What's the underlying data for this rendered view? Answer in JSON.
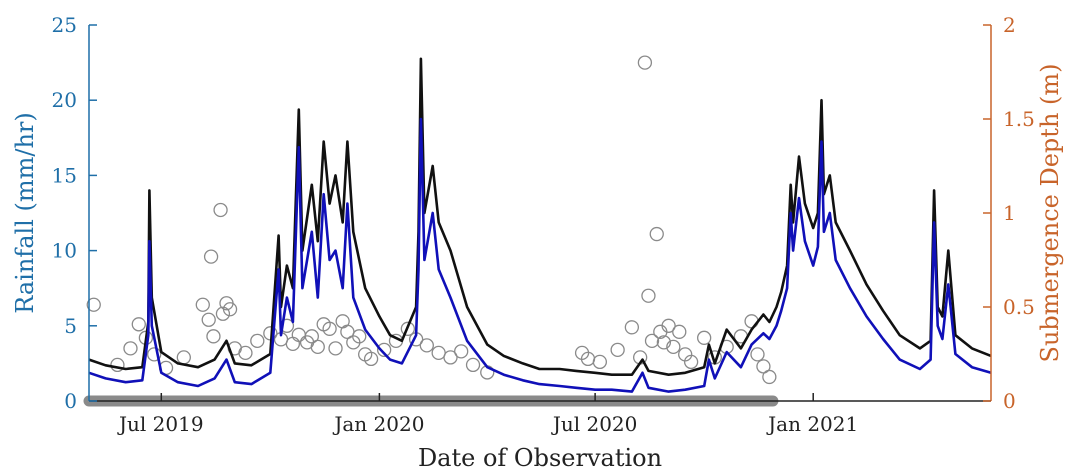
{
  "chart_data": {
    "type": "line",
    "title": "",
    "xlabel": "Date of Observation",
    "ylabel_left": "Rainfall (mm/hr)",
    "ylabel_right": "Submergence Depth (m)",
    "xlim": [
      "2019-05-01",
      "2021-05-31"
    ],
    "ylim_left": [
      0,
      25
    ],
    "ylim_right": [
      0,
      2
    ],
    "x_ticks": [
      {
        "date": "2019-07-01",
        "label": "Jul 2019"
      },
      {
        "date": "2020-01-01",
        "label": "Jan 2020"
      },
      {
        "date": "2020-07-01",
        "label": "Jul 2020"
      },
      {
        "date": "2021-01-01",
        "label": "Jan 2021"
      }
    ],
    "y_ticks_left": [
      0,
      5,
      10,
      15,
      20,
      25
    ],
    "y_ticks_right": [
      0,
      0.5,
      1,
      1.5,
      2
    ],
    "grid": false,
    "legend": null,
    "colors": {
      "left_axis": "#1f6fa8",
      "right_axis": "#c8642a",
      "series_black": "#111111",
      "series_blue": "#1010b8",
      "rain_markers": "#8a8a8a"
    },
    "series": [
      {
        "axis": "right",
        "color": "#111111",
        "points": [
          [
            "2019-05-01",
            0.22
          ],
          [
            "2019-05-15",
            0.19
          ],
          [
            "2019-06-01",
            0.17
          ],
          [
            "2019-06-15",
            0.18
          ],
          [
            "2019-06-20",
            0.42
          ],
          [
            "2019-06-21",
            1.12
          ],
          [
            "2019-06-23",
            0.55
          ],
          [
            "2019-07-01",
            0.26
          ],
          [
            "2019-07-15",
            0.2
          ],
          [
            "2019-08-01",
            0.18
          ],
          [
            "2019-08-15",
            0.22
          ],
          [
            "2019-08-25",
            0.32
          ],
          [
            "2019-09-01",
            0.2
          ],
          [
            "2019-09-15",
            0.19
          ],
          [
            "2019-10-01",
            0.25
          ],
          [
            "2019-10-08",
            0.88
          ],
          [
            "2019-10-10",
            0.5
          ],
          [
            "2019-10-15",
            0.72
          ],
          [
            "2019-10-20",
            0.6
          ],
          [
            "2019-10-25",
            1.55
          ],
          [
            "2019-10-28",
            0.8
          ],
          [
            "2019-11-05",
            1.15
          ],
          [
            "2019-11-10",
            0.85
          ],
          [
            "2019-11-15",
            1.38
          ],
          [
            "2019-11-20",
            1.05
          ],
          [
            "2019-11-25",
            1.2
          ],
          [
            "2019-12-01",
            0.95
          ],
          [
            "2019-12-05",
            1.38
          ],
          [
            "2019-12-10",
            0.9
          ],
          [
            "2019-12-20",
            0.6
          ],
          [
            "2020-01-01",
            0.45
          ],
          [
            "2020-01-10",
            0.35
          ],
          [
            "2020-01-20",
            0.32
          ],
          [
            "2020-02-01",
            0.5
          ],
          [
            "2020-02-03",
            0.9
          ],
          [
            "2020-02-05",
            1.82
          ],
          [
            "2020-02-08",
            1.0
          ],
          [
            "2020-02-15",
            1.25
          ],
          [
            "2020-02-20",
            0.95
          ],
          [
            "2020-03-01",
            0.8
          ],
          [
            "2020-03-15",
            0.5
          ],
          [
            "2020-04-01",
            0.3
          ],
          [
            "2020-04-15",
            0.24
          ],
          [
            "2020-05-01",
            0.2
          ],
          [
            "2020-05-15",
            0.17
          ],
          [
            "2020-06-01",
            0.17
          ],
          [
            "2020-06-15",
            0.16
          ],
          [
            "2020-07-01",
            0.15
          ],
          [
            "2020-07-15",
            0.14
          ],
          [
            "2020-08-01",
            0.14
          ],
          [
            "2020-08-10",
            0.22
          ],
          [
            "2020-08-15",
            0.16
          ],
          [
            "2020-09-01",
            0.14
          ],
          [
            "2020-09-15",
            0.15
          ],
          [
            "2020-10-01",
            0.18
          ],
          [
            "2020-10-05",
            0.3
          ],
          [
            "2020-10-10",
            0.2
          ],
          [
            "2020-10-20",
            0.38
          ],
          [
            "2020-11-01",
            0.28
          ],
          [
            "2020-11-10",
            0.38
          ],
          [
            "2020-11-20",
            0.46
          ],
          [
            "2020-11-25",
            0.42
          ],
          [
            "2020-12-01",
            0.5
          ],
          [
            "2020-12-05",
            0.58
          ],
          [
            "2020-12-10",
            0.72
          ],
          [
            "2020-12-13",
            1.15
          ],
          [
            "2020-12-15",
            0.95
          ],
          [
            "2020-12-20",
            1.3
          ],
          [
            "2020-12-25",
            1.05
          ],
          [
            "2021-01-01",
            0.92
          ],
          [
            "2021-01-05",
            1.0
          ],
          [
            "2021-01-08",
            1.6
          ],
          [
            "2021-01-10",
            1.1
          ],
          [
            "2021-01-15",
            1.2
          ],
          [
            "2021-01-20",
            0.95
          ],
          [
            "2021-02-01",
            0.8
          ],
          [
            "2021-02-15",
            0.62
          ],
          [
            "2021-03-01",
            0.48
          ],
          [
            "2021-03-15",
            0.35
          ],
          [
            "2021-04-01",
            0.28
          ],
          [
            "2021-04-10",
            0.32
          ],
          [
            "2021-04-13",
            1.12
          ],
          [
            "2021-04-16",
            0.5
          ],
          [
            "2021-04-20",
            0.45
          ],
          [
            "2021-04-25",
            0.8
          ],
          [
            "2021-05-01",
            0.35
          ],
          [
            "2021-05-15",
            0.28
          ],
          [
            "2021-05-31",
            0.24
          ]
        ]
      },
      {
        "axis": "right",
        "color": "#1010b8",
        "points": [
          [
            "2019-05-01",
            0.15
          ],
          [
            "2019-05-15",
            0.12
          ],
          [
            "2019-06-01",
            0.1
          ],
          [
            "2019-06-15",
            0.11
          ],
          [
            "2019-06-20",
            0.35
          ],
          [
            "2019-06-21",
            0.85
          ],
          [
            "2019-06-23",
            0.4
          ],
          [
            "2019-07-01",
            0.15
          ],
          [
            "2019-07-15",
            0.1
          ],
          [
            "2019-08-01",
            0.08
          ],
          [
            "2019-08-15",
            0.12
          ],
          [
            "2019-08-25",
            0.22
          ],
          [
            "2019-09-01",
            0.1
          ],
          [
            "2019-09-15",
            0.09
          ],
          [
            "2019-10-01",
            0.15
          ],
          [
            "2019-10-08",
            0.7
          ],
          [
            "2019-10-10",
            0.35
          ],
          [
            "2019-10-15",
            0.55
          ],
          [
            "2019-10-20",
            0.42
          ],
          [
            "2019-10-25",
            1.35
          ],
          [
            "2019-10-28",
            0.6
          ],
          [
            "2019-11-05",
            0.9
          ],
          [
            "2019-11-10",
            0.55
          ],
          [
            "2019-11-15",
            1.1
          ],
          [
            "2019-11-20",
            0.75
          ],
          [
            "2019-11-25",
            0.8
          ],
          [
            "2019-12-01",
            0.6
          ],
          [
            "2019-12-05",
            1.05
          ],
          [
            "2019-12-10",
            0.55
          ],
          [
            "2019-12-20",
            0.38
          ],
          [
            "2020-01-01",
            0.28
          ],
          [
            "2020-01-10",
            0.22
          ],
          [
            "2020-01-20",
            0.2
          ],
          [
            "2020-02-01",
            0.35
          ],
          [
            "2020-02-03",
            0.7
          ],
          [
            "2020-02-05",
            1.5
          ],
          [
            "2020-02-08",
            0.75
          ],
          [
            "2020-02-15",
            1.0
          ],
          [
            "2020-02-20",
            0.7
          ],
          [
            "2020-03-01",
            0.55
          ],
          [
            "2020-03-15",
            0.32
          ],
          [
            "2020-04-01",
            0.18
          ],
          [
            "2020-04-15",
            0.14
          ],
          [
            "2020-05-01",
            0.11
          ],
          [
            "2020-05-15",
            0.09
          ],
          [
            "2020-06-01",
            0.08
          ],
          [
            "2020-06-15",
            0.07
          ],
          [
            "2020-07-01",
            0.06
          ],
          [
            "2020-07-15",
            0.06
          ],
          [
            "2020-08-01",
            0.05
          ],
          [
            "2020-08-10",
            0.15
          ],
          [
            "2020-08-15",
            0.07
          ],
          [
            "2020-09-01",
            0.05
          ],
          [
            "2020-09-15",
            0.06
          ],
          [
            "2020-10-01",
            0.08
          ],
          [
            "2020-10-05",
            0.22
          ],
          [
            "2020-10-10",
            0.12
          ],
          [
            "2020-10-20",
            0.26
          ],
          [
            "2020-11-01",
            0.18
          ],
          [
            "2020-11-10",
            0.3
          ],
          [
            "2020-11-20",
            0.36
          ],
          [
            "2020-11-25",
            0.33
          ],
          [
            "2020-12-01",
            0.4
          ],
          [
            "2020-12-05",
            0.48
          ],
          [
            "2020-12-10",
            0.6
          ],
          [
            "2020-12-13",
            1.0
          ],
          [
            "2020-12-15",
            0.8
          ],
          [
            "2020-12-20",
            1.08
          ],
          [
            "2020-12-25",
            0.85
          ],
          [
            "2021-01-01",
            0.72
          ],
          [
            "2021-01-05",
            0.82
          ],
          [
            "2021-01-08",
            1.38
          ],
          [
            "2021-01-10",
            0.9
          ],
          [
            "2021-01-15",
            1.0
          ],
          [
            "2021-01-20",
            0.75
          ],
          [
            "2021-02-01",
            0.6
          ],
          [
            "2021-02-15",
            0.45
          ],
          [
            "2021-03-01",
            0.33
          ],
          [
            "2021-03-15",
            0.22
          ],
          [
            "2021-04-01",
            0.17
          ],
          [
            "2021-04-10",
            0.22
          ],
          [
            "2021-04-13",
            0.95
          ],
          [
            "2021-04-16",
            0.4
          ],
          [
            "2021-04-20",
            0.33
          ],
          [
            "2021-04-25",
            0.62
          ],
          [
            "2021-05-01",
            0.25
          ],
          [
            "2021-05-15",
            0.18
          ],
          [
            "2021-05-31",
            0.15
          ]
        ]
      }
    ],
    "scatter": {
      "axis": "left",
      "marker": "open-circle",
      "color": "#8a8a8a",
      "points": [
        [
          "2019-05-05",
          6.4
        ],
        [
          "2019-05-25",
          2.4
        ],
        [
          "2019-06-05",
          3.5
        ],
        [
          "2019-06-12",
          5.1
        ],
        [
          "2019-06-18",
          4.2
        ],
        [
          "2019-06-25",
          3.1
        ],
        [
          "2019-07-05",
          2.2
        ],
        [
          "2019-07-20",
          2.9
        ],
        [
          "2019-08-05",
          6.4
        ],
        [
          "2019-08-10",
          5.4
        ],
        [
          "2019-08-12",
          9.6
        ],
        [
          "2019-08-14",
          4.3
        ],
        [
          "2019-08-20",
          12.7
        ],
        [
          "2019-08-22",
          5.8
        ],
        [
          "2019-08-25",
          6.5
        ],
        [
          "2019-08-28",
          6.1
        ],
        [
          "2019-09-01",
          3.5
        ],
        [
          "2019-09-10",
          3.2
        ],
        [
          "2019-09-20",
          4.0
        ],
        [
          "2019-10-01",
          4.5
        ],
        [
          "2019-10-10",
          4.1
        ],
        [
          "2019-10-15",
          5.0
        ],
        [
          "2019-10-20",
          3.8
        ],
        [
          "2019-10-25",
          4.4
        ],
        [
          "2019-11-01",
          3.9
        ],
        [
          "2019-11-05",
          4.3
        ],
        [
          "2019-11-10",
          3.6
        ],
        [
          "2019-11-15",
          5.1
        ],
        [
          "2019-11-20",
          4.8
        ],
        [
          "2019-11-25",
          3.5
        ],
        [
          "2019-12-01",
          5.3
        ],
        [
          "2019-12-05",
          4.6
        ],
        [
          "2019-12-10",
          3.9
        ],
        [
          "2019-12-15",
          4.3
        ],
        [
          "2019-12-20",
          3.1
        ],
        [
          "2019-12-25",
          2.8
        ],
        [
          "2020-01-05",
          3.4
        ],
        [
          "2020-01-15",
          4.0
        ],
        [
          "2020-01-25",
          4.8
        ],
        [
          "2020-02-01",
          4.1
        ],
        [
          "2020-02-10",
          3.7
        ],
        [
          "2020-02-20",
          3.2
        ],
        [
          "2020-03-01",
          2.9
        ],
        [
          "2020-03-10",
          3.3
        ],
        [
          "2020-03-20",
          2.4
        ],
        [
          "2020-04-01",
          1.9
        ],
        [
          "2020-06-20",
          3.2
        ],
        [
          "2020-06-25",
          2.8
        ],
        [
          "2020-07-05",
          2.6
        ],
        [
          "2020-07-20",
          3.4
        ],
        [
          "2020-08-01",
          4.9
        ],
        [
          "2020-08-08",
          2.9
        ],
        [
          "2020-08-12",
          22.5
        ],
        [
          "2020-08-15",
          7.0
        ],
        [
          "2020-08-18",
          4.0
        ],
        [
          "2020-08-22",
          11.1
        ],
        [
          "2020-08-25",
          4.6
        ],
        [
          "2020-08-28",
          3.9
        ],
        [
          "2020-09-01",
          5.0
        ],
        [
          "2020-09-05",
          3.6
        ],
        [
          "2020-09-10",
          4.6
        ],
        [
          "2020-09-15",
          3.1
        ],
        [
          "2020-09-20",
          2.6
        ],
        [
          "2020-10-01",
          4.2
        ],
        [
          "2020-10-10",
          2.9
        ],
        [
          "2020-10-20",
          3.6
        ],
        [
          "2020-11-01",
          4.3
        ],
        [
          "2020-11-10",
          5.3
        ],
        [
          "2020-11-15",
          3.1
        ],
        [
          "2020-11-20",
          2.3
        ],
        [
          "2020-11-25",
          1.6
        ]
      ]
    },
    "observation_window": {
      "start": "2019-05-01",
      "end": "2020-11-28",
      "value": 0
    }
  }
}
